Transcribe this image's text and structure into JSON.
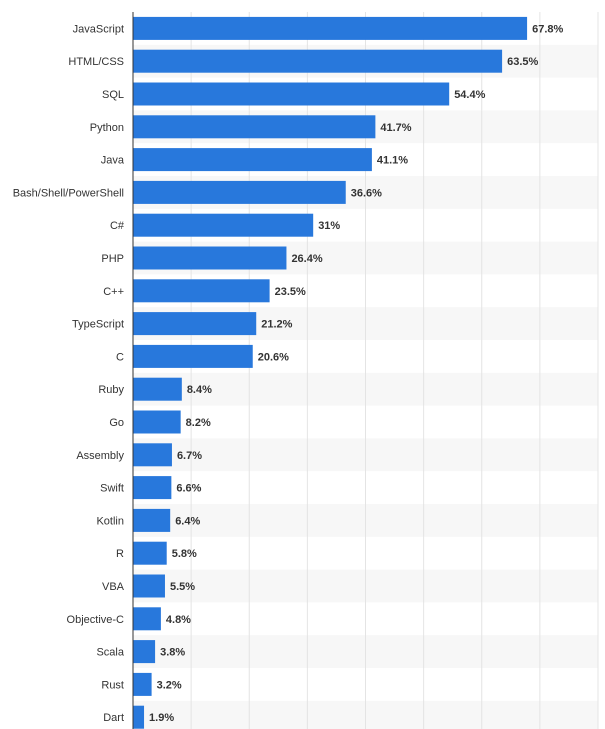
{
  "chart_data": {
    "type": "bar",
    "orientation": "horizontal",
    "categories": [
      "JavaScript",
      "HTML/CSS",
      "SQL",
      "Python",
      "Java",
      "Bash/Shell/PowerShell",
      "C#",
      "PHP",
      "C++",
      "TypeScript",
      "C",
      "Ruby",
      "Go",
      "Assembly",
      "Swift",
      "Kotlin",
      "R",
      "VBA",
      "Objective-C",
      "Scala",
      "Rust",
      "Dart"
    ],
    "values": [
      67.8,
      63.5,
      54.4,
      41.7,
      41.1,
      36.6,
      31,
      26.4,
      23.5,
      21.2,
      20.6,
      8.4,
      8.2,
      6.7,
      6.6,
      6.4,
      5.8,
      5.5,
      4.8,
      3.8,
      3.2,
      1.9
    ],
    "value_labels": [
      "67.8%",
      "63.5%",
      "54.4%",
      "41.7%",
      "41.1%",
      "36.6%",
      "31%",
      "26.4%",
      "23.5%",
      "21.2%",
      "20.6%",
      "8.4%",
      "8.2%",
      "6.7%",
      "6.6%",
      "6.4%",
      "5.8%",
      "5.5%",
      "4.8%",
      "3.8%",
      "3.2%",
      "1.9%"
    ],
    "title": "",
    "xlabel": "",
    "ylabel": "",
    "xlim": [
      0,
      80
    ],
    "grid": true,
    "legend": "none",
    "bar_color": "#2878dc",
    "stripe_color": "#f7f7f7",
    "gridline_color": "#e4e4e4",
    "axis_color": "#333333",
    "text_color": "#333333"
  }
}
